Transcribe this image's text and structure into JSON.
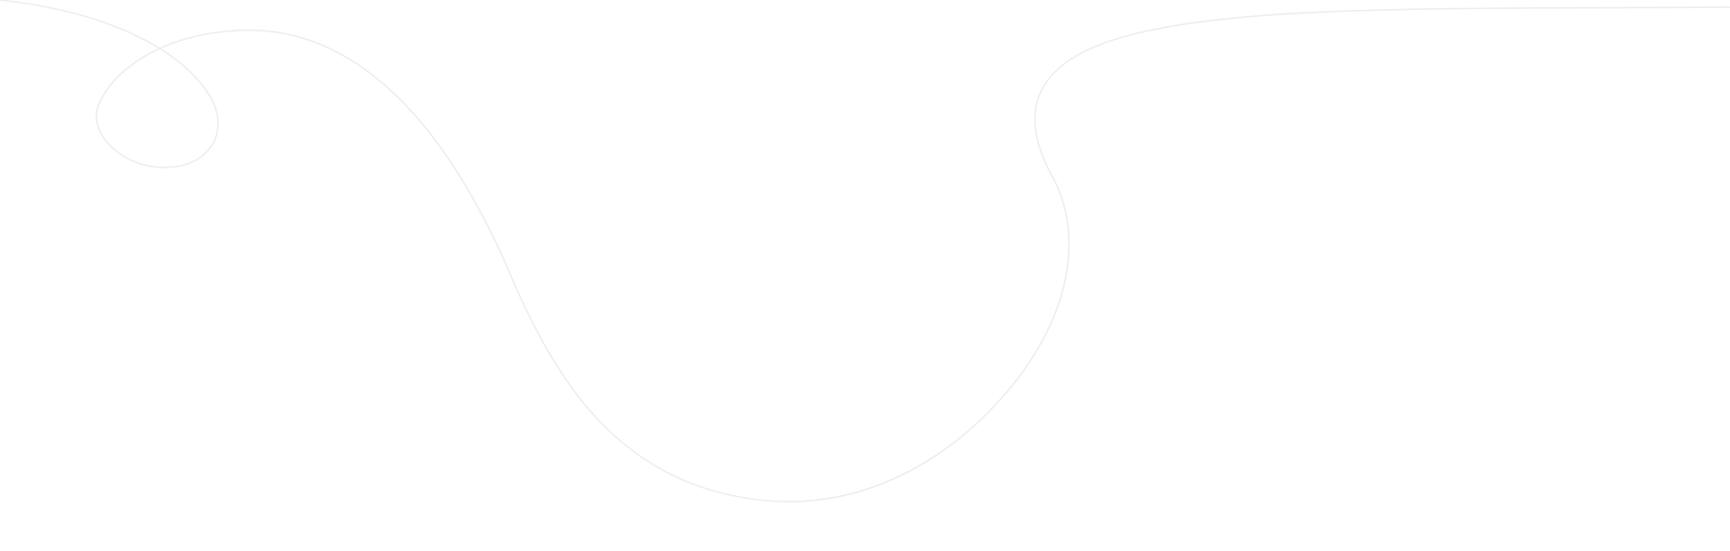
{
  "decoration": {
    "line_color": "#ececf2",
    "background_color": "#ffffff"
  }
}
